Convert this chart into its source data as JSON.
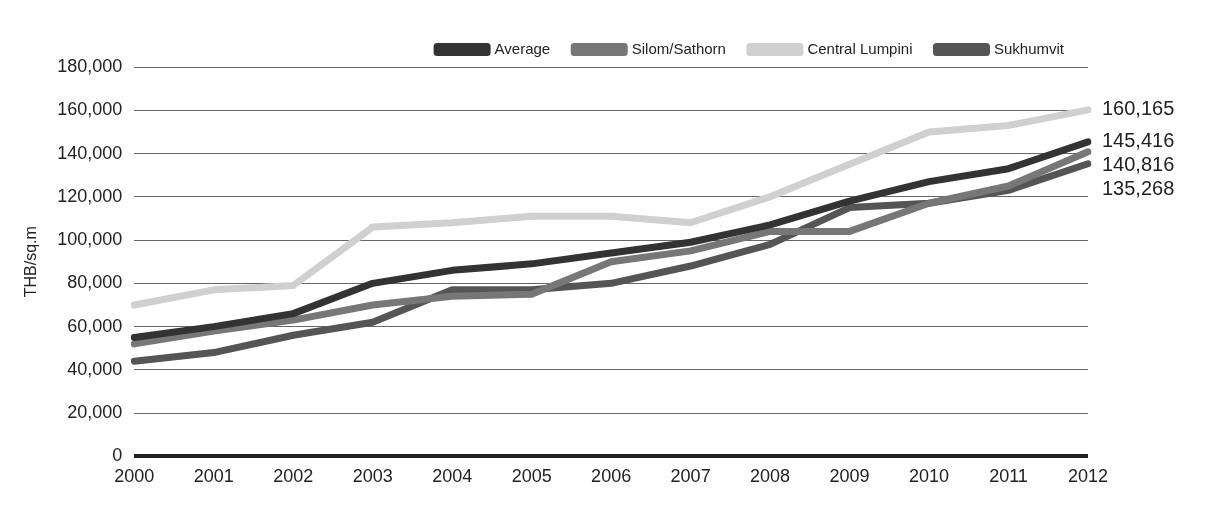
{
  "chart_data": {
    "type": "line",
    "ylabel": "THB/sq.m",
    "categories": [
      "2000",
      "2001",
      "2002",
      "2003",
      "2004",
      "2005",
      "2006",
      "2007",
      "2008",
      "2009",
      "2010",
      "2011",
      "2012"
    ],
    "series": [
      {
        "name": "Average",
        "color": "#333333",
        "values": [
          55000,
          60000,
          66000,
          80000,
          86000,
          89000,
          94000,
          99000,
          107000,
          118000,
          127000,
          133000,
          145416
        ],
        "value_labels": [
          null,
          null,
          null,
          null,
          null,
          null,
          null,
          null,
          null,
          null,
          null,
          null,
          "145,416"
        ]
      },
      {
        "name": "Silom/Sathorn",
        "color": "#777777",
        "values": [
          52000,
          58000,
          63000,
          70000,
          74000,
          75000,
          90000,
          95000,
          104000,
          104000,
          117000,
          125000,
          140816
        ],
        "value_labels": [
          null,
          null,
          null,
          null,
          null,
          null,
          null,
          null,
          null,
          null,
          null,
          null,
          "140,816"
        ]
      },
      {
        "name": "Central Lumpini",
        "color": "#d0d0d0",
        "values": [
          70000,
          77000,
          79000,
          106000,
          108000,
          111000,
          111000,
          108000,
          120000,
          135000,
          150000,
          153000,
          160165
        ],
        "value_labels": [
          null,
          null,
          null,
          null,
          null,
          null,
          null,
          null,
          null,
          null,
          null,
          null,
          "160,165"
        ]
      },
      {
        "name": "Sukhumvit",
        "color": "#555555",
        "values": [
          44000,
          48000,
          56000,
          62000,
          77000,
          77000,
          80000,
          88000,
          98000,
          115000,
          117000,
          123000,
          135268
        ],
        "value_labels": [
          null,
          null,
          null,
          null,
          null,
          null,
          null,
          null,
          null,
          null,
          null,
          null,
          "135,268"
        ]
      }
    ],
    "ylim": [
      0,
      180000
    ],
    "yticks": [
      0,
      {
        "value": 20000,
        "label": "20,000"
      },
      {
        "value": 40000,
        "label": "40,000"
      },
      {
        "value": 60000,
        "label": "60,000"
      },
      {
        "value": 80000,
        "label": "80,000"
      },
      {
        "value": 100000,
        "label": "100,000"
      },
      {
        "value": 120000,
        "label": "120,000"
      },
      {
        "value": 140000,
        "label": "140,000"
      },
      {
        "value": 160000,
        "label": "160,000"
      },
      {
        "value": 180000,
        "label": "180,000"
      }
    ],
    "grid": "y",
    "legend": "top right",
    "marker": "none",
    "line_style": "solid"
  }
}
